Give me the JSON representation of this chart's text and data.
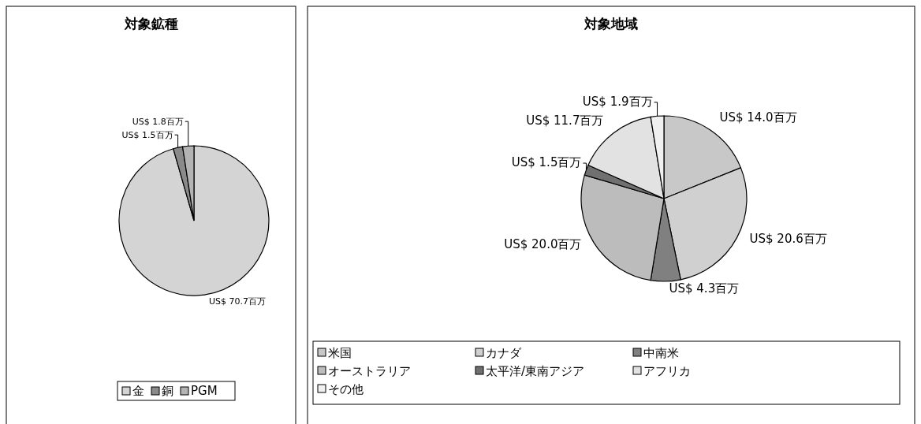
{
  "chart_data": [
    {
      "type": "pie",
      "title": "対象鉱種",
      "categories": [
        "金",
        "銅",
        "PGM"
      ],
      "values": [
        70.7,
        1.5,
        1.8
      ],
      "value_labels": [
        "US$ 70.7百万",
        "US$ 1.5百万",
        "US$ 1.8百万"
      ],
      "colors": [
        "#d4d4d4",
        "#8a8a8a",
        "#b4b4b4"
      ],
      "legend": "bottom"
    },
    {
      "type": "pie",
      "title": "対象地域",
      "categories": [
        "米国",
        "カナダ",
        "中南米",
        "オーストラリア",
        "太平洋/東南アジア",
        "アフリカ",
        "その他"
      ],
      "values": [
        14.0,
        20.6,
        4.3,
        20.0,
        1.5,
        11.7,
        1.9
      ],
      "value_labels": [
        "US$ 14.0百万",
        "US$ 20.6百万",
        "US$ 4.3百万",
        "US$ 20.0百万",
        "US$ 1.5百万",
        "US$ 11.7百万",
        "US$ 1.9百万"
      ],
      "colors": [
        "#c8c8c8",
        "#d0d0d0",
        "#808080",
        "#bcbcbc",
        "#707070",
        "#e2e2e2",
        "#f0f0f0"
      ],
      "legend": "bottom"
    }
  ]
}
